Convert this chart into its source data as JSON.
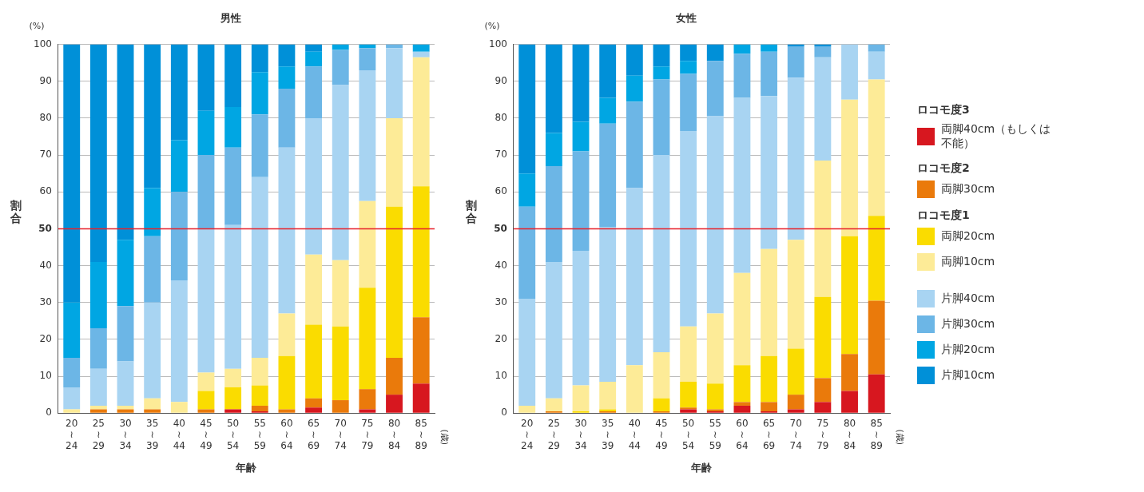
{
  "chart_data": [
    {
      "type": "bar",
      "title": "男性",
      "xlabel": "年齢",
      "ylabel": "割合",
      "stacked": true,
      "grid": "y",
      "legend": false,
      "categories": [
        "20\n≀\n24",
        "25\n≀\n29",
        "30\n≀\n34",
        "35\n≀\n39",
        "40\n≀\n44",
        "45\n≀\n49",
        "50\n≀\n54",
        "55\n≀\n59",
        "60\n≀\n64",
        "65\n≀\n69",
        "70\n≀\n74",
        "75\n≀\n79",
        "80\n≀\n84",
        "85\n≀\n89"
      ],
      "ylim": [
        0,
        100
      ],
      "yticks": [
        0,
        10,
        20,
        30,
        40,
        50,
        60,
        70,
        80,
        90,
        100
      ],
      "ref_lines": [
        {
          "axis": "y",
          "value": 50,
          "color": "#e8202a"
        }
      ],
      "annotations": [
        "(%)",
        "(歳)"
      ],
      "series": [
        {
          "color": "#d7171f",
          "values": [
            0,
            0,
            0,
            0,
            0,
            0,
            1,
            0.5,
            0,
            1.5,
            0,
            1,
            5,
            8
          ]
        },
        {
          "color": "#ea7a0b",
          "values": [
            0,
            1,
            1,
            1,
            0,
            1,
            0,
            1.5,
            1,
            2.5,
            3.5,
            5.5,
            10,
            18
          ]
        },
        {
          "color": "#fadc00",
          "values": [
            0,
            0,
            0,
            0,
            0,
            5,
            6,
            5.5,
            14.5,
            20,
            20,
            27.5,
            41,
            35.5
          ]
        },
        {
          "color": "#fdeb97",
          "values": [
            1,
            1,
            1,
            3,
            3,
            5,
            5,
            7.5,
            11.5,
            19,
            18,
            23.5,
            24,
            35
          ]
        },
        {
          "color": "#a8d4f2",
          "values": [
            6,
            10,
            12,
            26,
            33,
            39,
            39,
            49,
            45,
            37,
            47.5,
            35.5,
            19,
            1.5
          ]
        },
        {
          "color": "#6cb6e6",
          "values": [
            8,
            11,
            15,
            18,
            24,
            20,
            21,
            17,
            16,
            14,
            9.5,
            6,
            1,
            0
          ]
        },
        {
          "color": "#00a6e3",
          "values": [
            15,
            18,
            18,
            13,
            14,
            12,
            11,
            11.5,
            6,
            4,
            1.5,
            1,
            0,
            2
          ]
        },
        {
          "color": "#0090d8",
          "values": [
            70,
            59,
            53,
            39,
            26,
            18,
            17,
            7.5,
            6,
            2,
            0,
            0,
            0,
            0
          ]
        }
      ]
    },
    {
      "type": "bar",
      "title": "女性",
      "xlabel": "年齢",
      "ylabel": "割合",
      "stacked": true,
      "grid": "y",
      "legend": "right",
      "categories": [
        "20\n≀\n24",
        "25\n≀\n29",
        "30\n≀\n34",
        "35\n≀\n39",
        "40\n≀\n44",
        "45\n≀\n49",
        "50\n≀\n54",
        "55\n≀\n59",
        "60\n≀\n64",
        "65\n≀\n69",
        "70\n≀\n74",
        "75\n≀\n79",
        "80\n≀\n84",
        "85\n≀\n89"
      ],
      "ylim": [
        0,
        100
      ],
      "yticks": [
        0,
        10,
        20,
        30,
        40,
        50,
        60,
        70,
        80,
        90,
        100
      ],
      "ref_lines": [
        {
          "axis": "y",
          "value": 50,
          "color": "#e8202a"
        }
      ],
      "annotations": [
        "(%)",
        "(歳)",
        "ロコモ度3",
        "ロコモ度2",
        "ロコモ度1"
      ],
      "series": [
        {
          "name": "両脚40cm（もしくは不能）",
          "color": "#d7171f",
          "values": [
            0,
            0,
            0,
            0,
            0,
            0,
            1,
            0.5,
            2,
            0.5,
            1,
            3,
            6,
            10.5
          ]
        },
        {
          "name": "両脚30cm",
          "color": "#ea7a0b",
          "values": [
            0,
            0.5,
            0,
            0.5,
            0,
            0.5,
            0.5,
            0.5,
            1,
            2.5,
            4,
            6.5,
            10,
            20
          ]
        },
        {
          "name": "両脚20cm",
          "color": "#fadc00",
          "values": [
            0,
            0,
            0.5,
            0.5,
            0,
            3.5,
            7,
            7,
            10,
            12.5,
            12.5,
            22,
            32,
            23
          ]
        },
        {
          "name": "両脚10cm",
          "color": "#fdeb97",
          "values": [
            2,
            3.5,
            7,
            7.5,
            13,
            12.5,
            15,
            19,
            25,
            29,
            29.5,
            37,
            37,
            37
          ]
        },
        {
          "name": "片脚40cm",
          "color": "#a8d4f2",
          "values": [
            29,
            37,
            36.5,
            42,
            48,
            53.5,
            53,
            53.5,
            47.5,
            41.5,
            44,
            28,
            15,
            7.5
          ]
        },
        {
          "name": "片脚30cm",
          "color": "#6cb6e6",
          "values": [
            25,
            26,
            27,
            28,
            23.5,
            20.5,
            15.5,
            15,
            12,
            12,
            8.5,
            3,
            0,
            2
          ]
        },
        {
          "name": "片脚20cm",
          "color": "#00a6e3",
          "values": [
            9,
            9,
            8,
            7,
            7,
            3.5,
            3.5,
            0,
            2.5,
            2,
            0,
            0,
            0,
            0
          ]
        },
        {
          "name": "片脚10cm",
          "color": "#0090d8",
          "values": [
            35,
            24,
            21,
            14.5,
            8.5,
            6,
            4.5,
            4.5,
            0,
            0,
            0.5,
            0.5,
            0,
            0
          ]
        }
      ]
    }
  ]
}
